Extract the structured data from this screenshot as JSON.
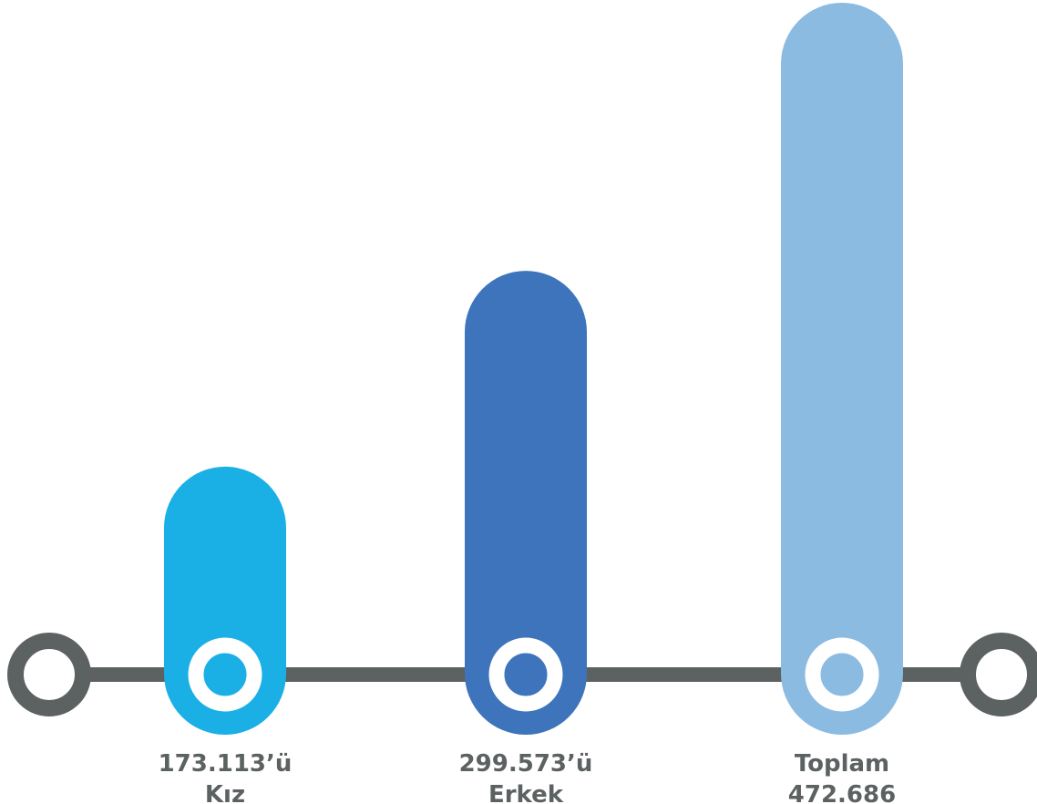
{
  "chart_data": {
    "type": "bar",
    "title": "",
    "xlabel": "",
    "ylabel": "",
    "ylim": [
      0,
      472686
    ],
    "grid": false,
    "categories": [
      "Kız",
      "Erkek",
      "Toplam"
    ],
    "values": [
      173113,
      299573,
      472686
    ],
    "value_labels": [
      "173.113’ü",
      "299.573’ü",
      "472.686"
    ],
    "category_labels": [
      "Kız",
      "Erkek",
      "Toplam"
    ],
    "label_order": [
      "value-first",
      "value-first",
      "category-first"
    ],
    "colors": [
      "#1ab0e6",
      "#3d74bb",
      "#8cbbe2"
    ]
  },
  "colors": {
    "timeline": "#5c6162",
    "text": "#5c6162",
    "ring_inner": "#ffffff"
  }
}
